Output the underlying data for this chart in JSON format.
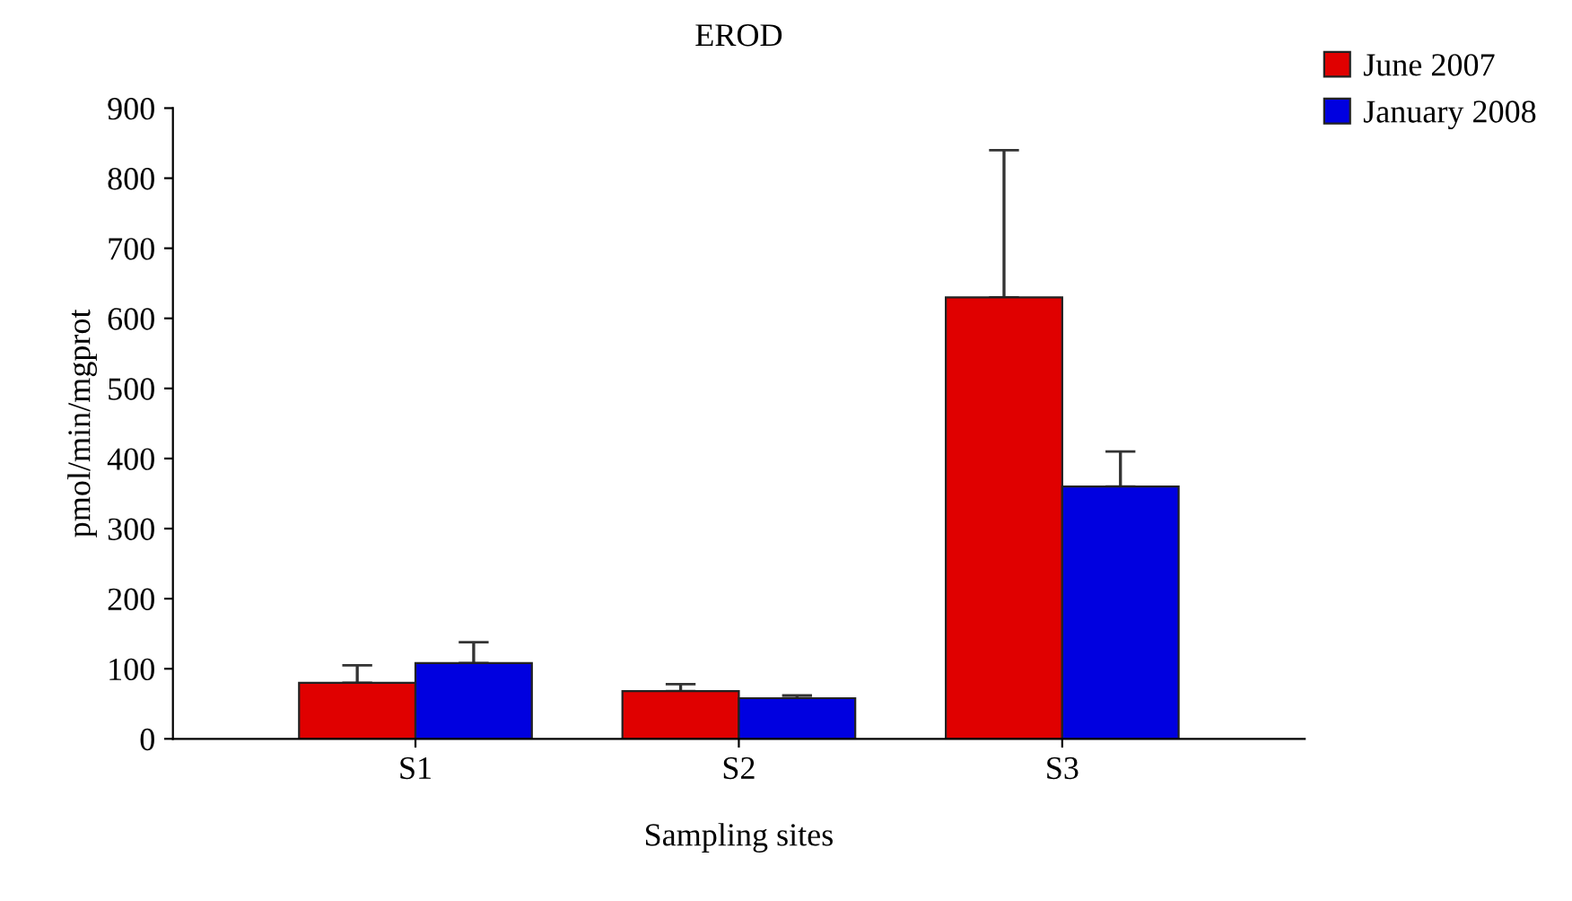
{
  "chart_data": {
    "type": "bar",
    "title": "EROD",
    "xlabel": "Sampling sites",
    "ylabel": "pmol/min/mgprot",
    "categories": [
      "S1",
      "S2",
      "S3"
    ],
    "series": [
      {
        "name": "June 2007",
        "color": "#e00000",
        "values": [
          80,
          68,
          630
        ],
        "errors": [
          25,
          10,
          210
        ]
      },
      {
        "name": "January 2008",
        "color": "#0000e0",
        "values": [
          108,
          58,
          360
        ],
        "errors": [
          30,
          4,
          50
        ]
      }
    ],
    "ylim": [
      0,
      900
    ],
    "yticks": [
      0,
      100,
      200,
      300,
      400,
      500,
      600,
      700,
      800,
      900
    ],
    "grid": false,
    "legend": "top right"
  }
}
